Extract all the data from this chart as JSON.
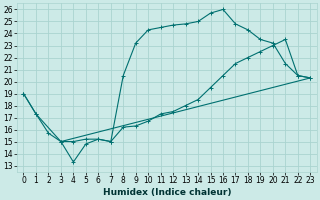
{
  "xlabel": "Humidex (Indice chaleur)",
  "xlim": [
    -0.5,
    23.5
  ],
  "ylim": [
    12.5,
    26.5
  ],
  "xticks": [
    0,
    1,
    2,
    3,
    4,
    5,
    6,
    7,
    8,
    9,
    10,
    11,
    12,
    13,
    14,
    15,
    16,
    17,
    18,
    19,
    20,
    21,
    22,
    23
  ],
  "yticks": [
    13,
    14,
    15,
    16,
    17,
    18,
    19,
    20,
    21,
    22,
    23,
    24,
    25,
    26
  ],
  "background_color": "#cceae7",
  "grid_color": "#aad4d0",
  "line_color": "#007070",
  "line1_x": [
    0,
    1,
    2,
    3,
    4,
    5,
    6,
    7,
    8,
    9,
    10,
    11,
    12,
    13,
    14,
    15,
    16,
    17,
    18,
    19,
    20,
    21,
    22,
    23
  ],
  "line1_y": [
    19.0,
    17.3,
    15.7,
    15.0,
    15.0,
    15.2,
    15.2,
    15.0,
    16.2,
    16.3,
    16.7,
    17.3,
    17.5,
    18.0,
    18.5,
    19.5,
    20.5,
    21.5,
    22.0,
    22.5,
    23.0,
    23.5,
    20.5,
    20.3
  ],
  "line2_x": [
    0,
    1,
    3,
    4,
    5,
    6,
    7,
    8,
    9,
    10,
    11,
    12,
    13,
    14,
    15,
    16,
    17,
    18,
    19,
    20,
    21,
    22,
    23
  ],
  "line2_y": [
    19.0,
    17.3,
    15.0,
    13.3,
    14.8,
    15.2,
    15.0,
    20.5,
    23.2,
    24.3,
    24.5,
    24.7,
    24.8,
    25.0,
    25.7,
    26.0,
    24.8,
    24.3,
    23.5,
    23.2,
    21.5,
    20.5,
    20.3
  ],
  "line3_x": [
    3,
    23
  ],
  "line3_y": [
    15.0,
    20.3
  ],
  "tick_fontsize": 5.5,
  "xlabel_fontsize": 6.5
}
